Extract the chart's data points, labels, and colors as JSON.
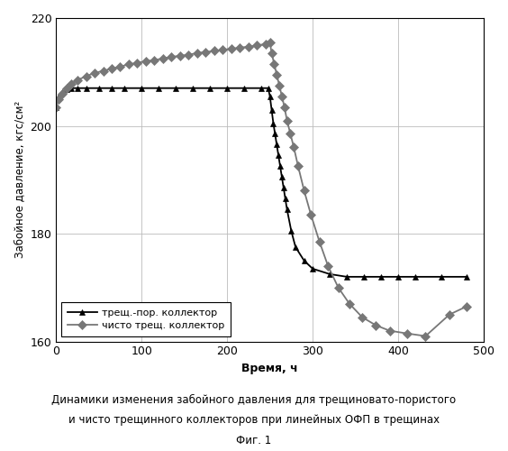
{
  "title_line1": "Динамики изменения забойного давления для трещиноватo-пористого",
  "title_line2": "и чисто трещинного коллекторов при линейных ОФП в трещинах",
  "title_line3": "Фиг. 1",
  "ylabel": "Забойное давление, кгс/см²",
  "xlabel": "Время, ч",
  "xlim": [
    0,
    500
  ],
  "ylim": [
    160,
    220
  ],
  "yticks": [
    160,
    180,
    200,
    220
  ],
  "xticks": [
    0,
    100,
    200,
    300,
    400,
    500
  ],
  "legend1": "трещ.-пор. коллектор",
  "legend2": "чисто трещ. коллектор",
  "background_color": "#ffffff",
  "line1_color": "#000000",
  "line2_color": "#777777",
  "grid_color": "#bbbbbb",
  "series1_x": [
    0,
    3,
    7,
    12,
    18,
    25,
    35,
    50,
    65,
    80,
    100,
    120,
    140,
    160,
    180,
    200,
    220,
    240,
    248,
    250,
    252,
    254,
    256,
    258,
    260,
    262,
    264,
    266,
    268,
    270,
    275,
    280,
    290,
    300,
    320,
    340,
    360,
    380,
    400,
    420,
    450,
    480
  ],
  "series1_y": [
    203.5,
    205.5,
    206.2,
    206.8,
    207.0,
    207.0,
    207.0,
    207.0,
    207.0,
    207.0,
    207.0,
    207.0,
    207.0,
    207.0,
    207.0,
    207.0,
    207.0,
    207.0,
    207.0,
    205.5,
    203.0,
    200.5,
    198.5,
    196.5,
    194.5,
    192.5,
    190.5,
    188.5,
    186.5,
    184.5,
    180.5,
    177.5,
    175.0,
    173.5,
    172.5,
    172.0,
    172.0,
    172.0,
    172.0,
    172.0,
    172.0,
    172.0
  ],
  "series2_x": [
    0,
    3,
    7,
    12,
    18,
    25,
    35,
    45,
    55,
    65,
    75,
    85,
    95,
    105,
    115,
    125,
    135,
    145,
    155,
    165,
    175,
    185,
    195,
    205,
    215,
    225,
    235,
    245,
    250,
    252,
    255,
    258,
    261,
    264,
    267,
    270,
    274,
    278,
    283,
    290,
    298,
    308,
    318,
    330,
    343,
    358,
    374,
    390,
    410,
    432,
    460,
    480
  ],
  "series2_y": [
    203.5,
    205.0,
    206.0,
    207.0,
    207.8,
    208.5,
    209.2,
    209.8,
    210.2,
    210.6,
    211.0,
    211.4,
    211.7,
    212.0,
    212.2,
    212.5,
    212.8,
    213.0,
    213.2,
    213.5,
    213.7,
    213.9,
    214.1,
    214.3,
    214.5,
    214.7,
    214.9,
    215.2,
    215.5,
    213.5,
    211.5,
    209.5,
    207.5,
    205.5,
    203.5,
    201.0,
    198.5,
    196.0,
    192.5,
    188.0,
    183.5,
    178.5,
    174.0,
    170.0,
    167.0,
    164.5,
    163.0,
    162.0,
    161.5,
    161.0,
    165.0,
    166.5
  ]
}
